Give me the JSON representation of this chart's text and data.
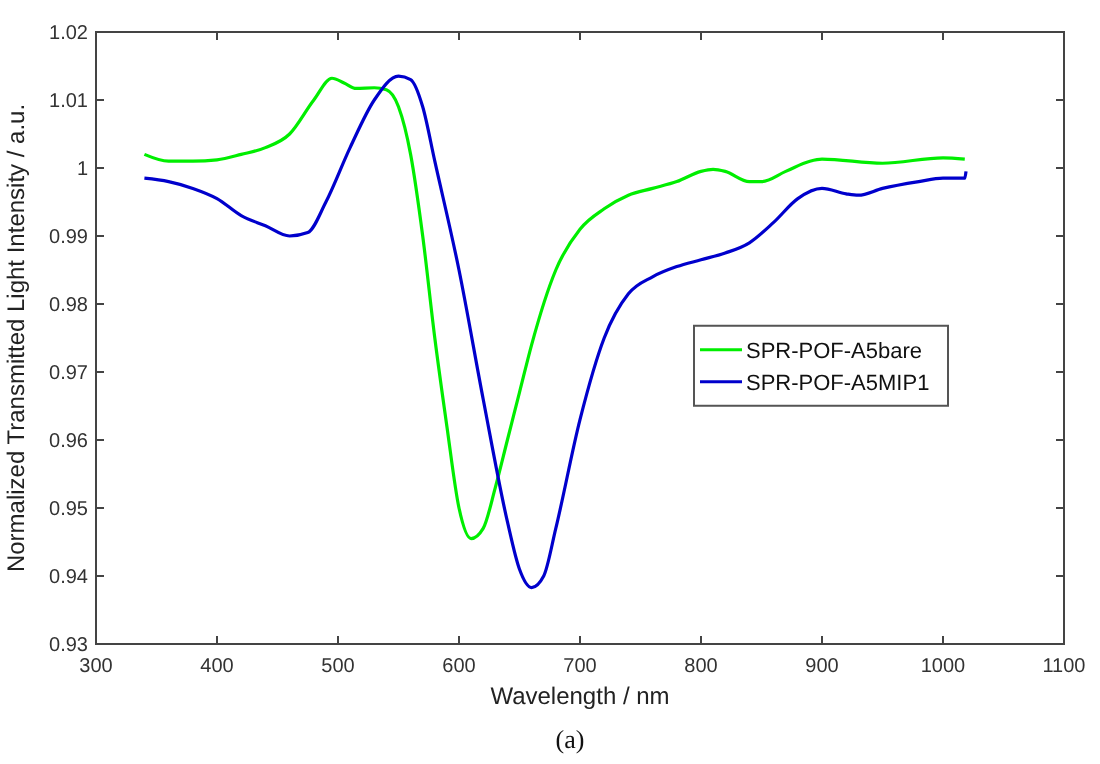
{
  "chart_data": {
    "type": "line",
    "xlabel": "Wavelength / nm",
    "ylabel": "Normalized Transmitted Light Intensity / a.u.",
    "annotations": [
      "(a)"
    ],
    "xlim": [
      300,
      1100
    ],
    "ylim": [
      0.93,
      1.02
    ],
    "xticks": [
      300,
      400,
      500,
      600,
      700,
      800,
      900,
      1000,
      1100
    ],
    "yticks": [
      0.93,
      0.94,
      0.95,
      0.96,
      0.97,
      0.98,
      0.99,
      {
        "value": 1,
        "label": "1"
      },
      1.01,
      1.02
    ],
    "grid": false,
    "legend": "right",
    "marker": "none",
    "line_style": "solid",
    "series": [
      {
        "name": "SPR-POF-A5bare",
        "color": "#00ee00",
        "x": [
          340,
          360,
          380,
          400,
          420,
          440,
          460,
          480,
          495,
          505,
          515,
          530,
          540,
          550,
          560,
          570,
          580,
          590,
          600,
          610,
          620,
          630,
          640,
          650,
          660,
          680,
          700,
          720,
          740,
          760,
          780,
          800,
          810,
          820,
          840,
          850,
          870,
          890,
          900,
          950,
          1000,
          1018
        ],
        "values": [
          1.002,
          1.001,
          1.001,
          1.0012,
          1.002,
          1.003,
          1.005,
          1.01,
          1.0132,
          1.0125,
          1.0117,
          1.0118,
          1.0115,
          1.009,
          1.002,
          0.99,
          0.975,
          0.962,
          0.95,
          0.9455,
          0.947,
          0.953,
          0.96,
          0.967,
          0.974,
          0.985,
          0.991,
          0.994,
          0.996,
          0.997,
          0.998,
          0.9995,
          0.9998,
          0.9995,
          0.998,
          0.998,
          0.9995,
          1.001,
          1.0013,
          1.0007,
          1.0015,
          1.0013
        ]
      },
      {
        "name": "SPR-POF-A5MIP1",
        "color": "#0000cc",
        "x": [
          340,
          360,
          380,
          400,
          420,
          440,
          460,
          475,
          490,
          510,
          530,
          550,
          560,
          570,
          580,
          600,
          620,
          640,
          650,
          660,
          670,
          680,
          700,
          720,
          740,
          760,
          780,
          800,
          820,
          840,
          860,
          880,
          900,
          920,
          930,
          950,
          980,
          1000,
          1018,
          1019
        ],
        "values": [
          0.9985,
          0.998,
          0.997,
          0.9955,
          0.993,
          0.9915,
          0.99,
          0.9905,
          0.995,
          1.003,
          1.01,
          1.0135,
          1.013,
          1.009,
          1.001,
          0.985,
          0.966,
          0.948,
          0.941,
          0.9383,
          0.94,
          0.947,
          0.963,
          0.975,
          0.9815,
          0.984,
          0.9855,
          0.9865,
          0.9875,
          0.989,
          0.992,
          0.9955,
          0.997,
          0.9962,
          0.996,
          0.997,
          0.998,
          0.9985,
          0.9985,
          0.9995
        ]
      }
    ]
  }
}
